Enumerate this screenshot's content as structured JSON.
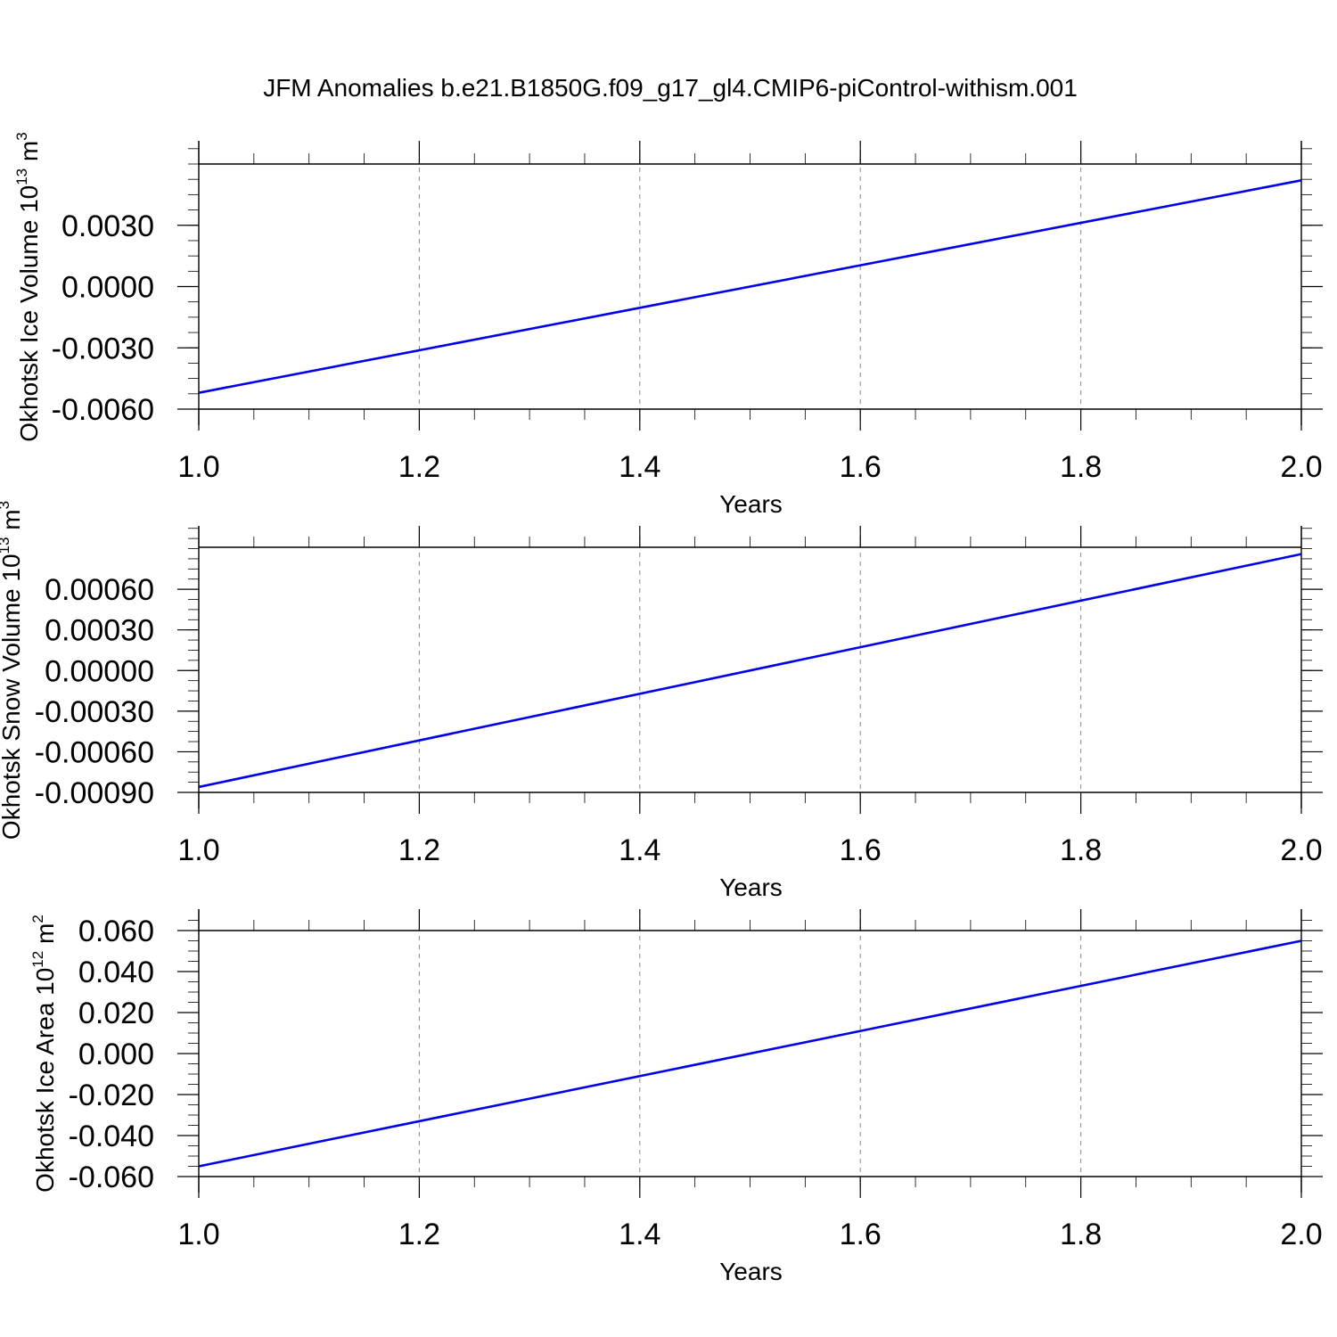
{
  "figure": {
    "title": "JFM Anomalies b.e21.B1850G.f09_g17_gl4.CMIP6-piControl-withism.001"
  },
  "chart_data": [
    {
      "type": "line",
      "xlabel": "Years",
      "ylabel": {
        "main": "Okhotsk Ice Volume 10",
        "sup": "13",
        "unit": " m",
        "unit_sup": "3"
      },
      "xlim": [
        1.0,
        2.0
      ],
      "ylim": [
        -0.006,
        0.006
      ],
      "x_ticks": [
        1.0,
        1.2,
        1.4,
        1.6,
        1.8,
        2.0
      ],
      "x_tick_labels": [
        "1.0",
        "1.2",
        "1.4",
        "1.6",
        "1.8",
        "2.0"
      ],
      "y_ticks": [
        -0.006,
        -0.003,
        0.0,
        0.003
      ],
      "y_tick_labels": [
        "-0.0060",
        "-0.0030",
        "0.0000",
        "0.0030"
      ],
      "grid": "vertical-dashed",
      "series": [
        {
          "color": "#0000ee",
          "x": [
            1.0,
            2.0
          ],
          "y": [
            -0.0052,
            0.0052
          ]
        }
      ]
    },
    {
      "type": "line",
      "xlabel": "Years",
      "ylabel": {
        "main": "Okhotsk Snow Volume 10",
        "sup": "13",
        "unit": " m",
        "unit_sup": "3"
      },
      "xlim": [
        1.0,
        2.0
      ],
      "ylim": [
        -0.0009,
        0.00091
      ],
      "x_ticks": [
        1.0,
        1.2,
        1.4,
        1.6,
        1.8,
        2.0
      ],
      "x_tick_labels": [
        "1.0",
        "1.2",
        "1.4",
        "1.6",
        "1.8",
        "2.0"
      ],
      "y_ticks": [
        -0.0009,
        -0.0006,
        -0.0003,
        0.0,
        0.0003,
        0.0006
      ],
      "y_tick_labels": [
        "-0.00090",
        "-0.00060",
        "-0.00030",
        "0.00000",
        "0.00030",
        "0.00060"
      ],
      "grid": "vertical-dashed",
      "series": [
        {
          "color": "#0000ee",
          "x": [
            1.0,
            2.0
          ],
          "y": [
            -0.00086,
            0.00086
          ]
        }
      ]
    },
    {
      "type": "line",
      "xlabel": "Years",
      "ylabel": {
        "main": "Okhotsk Ice Area 10",
        "sup": "12",
        "unit": " m",
        "unit_sup": "2"
      },
      "xlim": [
        1.0,
        2.0
      ],
      "ylim": [
        -0.06,
        0.06
      ],
      "x_ticks": [
        1.0,
        1.2,
        1.4,
        1.6,
        1.8,
        2.0
      ],
      "x_tick_labels": [
        "1.0",
        "1.2",
        "1.4",
        "1.6",
        "1.8",
        "2.0"
      ],
      "y_ticks": [
        -0.06,
        -0.04,
        -0.02,
        0.0,
        0.02,
        0.04,
        0.06
      ],
      "y_tick_labels": [
        "-0.060",
        "-0.040",
        "-0.020",
        "0.000",
        "0.020",
        "0.040",
        "0.060"
      ],
      "grid": "vertical-dashed",
      "series": [
        {
          "color": "#0000ee",
          "x": [
            1.0,
            2.0
          ],
          "y": [
            -0.055,
            0.055
          ]
        }
      ]
    }
  ]
}
